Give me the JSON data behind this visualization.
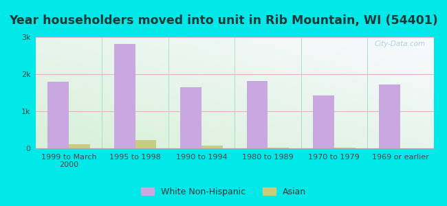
{
  "title": "Year householders moved into unit in Rib Mountain, WI (54401)",
  "categories": [
    "1999 to March\n2000",
    "1995 to 1998",
    "1990 to 1994",
    "1980 to 1989",
    "1970 to 1979",
    "1969 or earlier"
  ],
  "white_values": [
    1800,
    2820,
    1650,
    1820,
    1430,
    1720
  ],
  "asian_values": [
    115,
    230,
    75,
    18,
    12,
    0
  ],
  "white_color": "#c9a8e0",
  "asian_color": "#c8cc80",
  "background_outer": "#00e8e8",
  "ylim": [
    0,
    3000
  ],
  "yticks": [
    0,
    1000,
    2000,
    3000
  ],
  "ytick_labels": [
    "0",
    "1k",
    "2k",
    "3k"
  ],
  "bar_width": 0.32,
  "title_fontsize": 12.5,
  "tick_fontsize": 8,
  "legend_fontsize": 9,
  "watermark": "City-Data.com"
}
